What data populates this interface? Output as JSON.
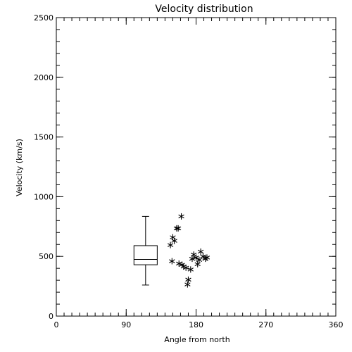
{
  "chart_data": {
    "type": "scatter",
    "title": "Velocity distribution",
    "xlabel": "Angle from north",
    "ylabel": "Velocity (km/s)",
    "xlim": [
      0,
      360
    ],
    "ylim": [
      0,
      2500
    ],
    "x_ticks": [
      0,
      90,
      180,
      270,
      360
    ],
    "y_ticks": [
      0,
      500,
      1000,
      1500,
      2000,
      2500
    ],
    "x_minor_step": 10,
    "y_minor_step": 100,
    "marker": "asterisk",
    "points": [
      {
        "x": 147,
        "y": 595
      },
      {
        "x": 150,
        "y": 660
      },
      {
        "x": 152,
        "y": 630
      },
      {
        "x": 155,
        "y": 735
      },
      {
        "x": 157,
        "y": 735
      },
      {
        "x": 161,
        "y": 835
      },
      {
        "x": 149,
        "y": 460
      },
      {
        "x": 158,
        "y": 440
      },
      {
        "x": 162,
        "y": 430
      },
      {
        "x": 164,
        "y": 415
      },
      {
        "x": 167,
        "y": 405
      },
      {
        "x": 169,
        "y": 265
      },
      {
        "x": 170,
        "y": 305
      },
      {
        "x": 173,
        "y": 390
      },
      {
        "x": 175,
        "y": 480
      },
      {
        "x": 177,
        "y": 515
      },
      {
        "x": 180,
        "y": 490
      },
      {
        "x": 182,
        "y": 435
      },
      {
        "x": 184,
        "y": 470
      },
      {
        "x": 186,
        "y": 540
      },
      {
        "x": 189,
        "y": 500
      },
      {
        "x": 192,
        "y": 480
      },
      {
        "x": 194,
        "y": 490
      }
    ],
    "boxplot": {
      "x_center": 115,
      "x_width": 30,
      "min": 260,
      "q1": 430,
      "median": 475,
      "q3": 590,
      "max": 835
    }
  }
}
